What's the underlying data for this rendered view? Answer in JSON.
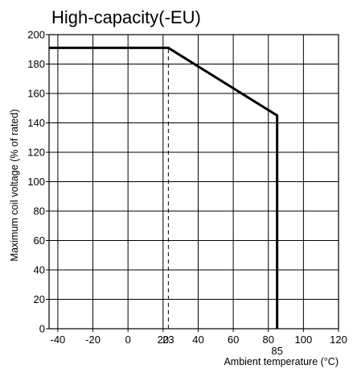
{
  "chart_data": {
    "type": "line",
    "title": "High-capacity(-EU)",
    "xlabel": "Ambient temperature (°C)",
    "ylabel": "Maximum coil voltage (% of rated)",
    "xlim": [
      -45,
      120
    ],
    "ylim": [
      0,
      200
    ],
    "x_ticks": [
      -40,
      -20,
      0,
      20,
      40,
      60,
      80,
      100,
      120
    ],
    "y_ticks": [
      0,
      20,
      40,
      60,
      80,
      100,
      120,
      140,
      160,
      180,
      200
    ],
    "x_marked_values": [
      23,
      85
    ],
    "grid": true,
    "series": [
      {
        "points": [
          {
            "x": -45,
            "y": 191
          },
          {
            "x": 23,
            "y": 191
          },
          {
            "x": 85,
            "y": 145
          },
          {
            "x": 85,
            "y": 0
          }
        ]
      }
    ],
    "reference_lines": [
      {
        "orientation": "vertical",
        "x": 23,
        "style": "dashed",
        "from_y": 0,
        "to_y": 191
      }
    ]
  }
}
